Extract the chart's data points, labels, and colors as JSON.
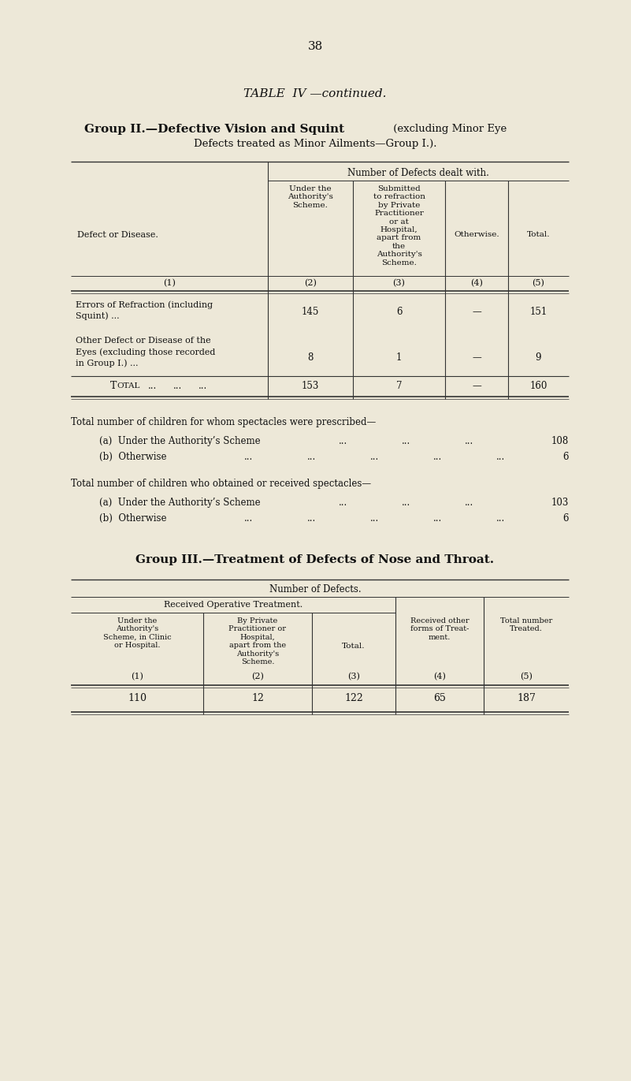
{
  "bg_color": "#ede8d8",
  "page_number": "38",
  "table_iv_title": "TABLE  IV —continued.",
  "group2_bold": "Group II.—Defective Vision and Squint",
  "group2_normal": " (excluding Minor Eye",
  "group2_line2": "Defects treated as Minor Ailments—Group I.).",
  "group2_header_span": "Number of Defects dealt with.",
  "group2_col2_hdr": "Under the\nAuthority's\nScheme.",
  "group2_col3_hdr": "Submitted\nto refraction\nby Private\nPractitioner\nor at\nHospital,\napart from\nthe\nAuthority's\nScheme.",
  "group2_col4_hdr": "Otherwise.",
  "group2_col5_hdr": "Total.",
  "defect_disease_lbl": "Defect or Disease.",
  "col_nums": [
    "(1)",
    "(2)",
    "(3)",
    "(4)",
    "(5)"
  ],
  "row1_label1": "Errors of Refraction (including",
  "row1_label2": "Squint) ...",
  "row1_vals": [
    "145",
    "6",
    "—",
    "151"
  ],
  "row2_label1": "Other Defect or Disease of the",
  "row2_label2": "Eyes (excluding those recorded",
  "row2_label3": "in Group I.) ...",
  "row2_vals": [
    "8",
    "1",
    "—",
    "9"
  ],
  "total_label": "Total  ...",
  "total_vals": [
    "153",
    "7",
    "—",
    "160"
  ],
  "sp_presc_title": "Total number of children for whom spectacles were prescribed—",
  "sp_presc_a_lbl": "(a)  Under the Authority’s Scheme",
  "sp_presc_a_val": "108",
  "sp_presc_b_lbl": "(b)  Otherwise",
  "sp_presc_b_dots": "...          ...          ...          ...          ...",
  "sp_presc_b_val": "6",
  "sp_presc_a_dots": "...               ...               ...",
  "sp_obt_title": "Total number of children who obtained or received spectacles—",
  "sp_obt_a_lbl": "(a)  Under the Authority’s Scheme",
  "sp_obt_a_val": "103",
  "sp_obt_b_lbl": "(b)  Otherwise",
  "sp_obt_b_val": "6",
  "sp_obt_a_dots": "...          ...          ...",
  "sp_obt_b_dots": "...     ...     ...     ...     ...",
  "group3_title": "Group III.—Treatment of Defects of Nose and Throat.",
  "group3_header_span": "Number of Defects.",
  "group3_sub_span": "Received Operative Treatment.",
  "g3c1_hdr": "Under the\nAuthority's\nScheme, in Clinic\nor Hospital.",
  "g3c2_hdr": "By Private\nPractitioner or\nHospital,\napart from the\nAuthority's\nScheme.",
  "g3c3_hdr": "Total.",
  "g3c4_hdr": "Received other\nforms of Treat-\nment.",
  "g3c5_hdr": "Total number\nTreated.",
  "g3_row": [
    "110",
    "12",
    "122",
    "65",
    "187"
  ],
  "text_color": "#111111",
  "line_color": "#333333"
}
